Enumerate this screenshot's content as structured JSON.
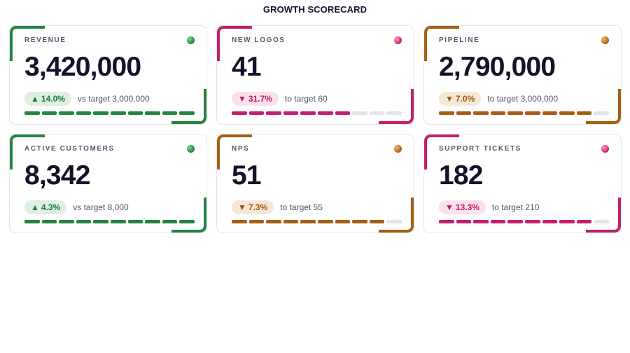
{
  "page": {
    "title": "GROWTH SCORECARD"
  },
  "palette": {
    "green": {
      "accent": "#23843f",
      "badge_bg": "#dff0e3",
      "badge_fg": "#1f7a39",
      "dot": "radial-gradient(circle at 35% 35%, #7fdc98, #1f7a39 70%)"
    },
    "pink": {
      "accent": "#c41f6a",
      "badge_bg": "#fbe0ec",
      "badge_fg": "#b81c62",
      "dot": "radial-gradient(circle at 35% 35%, #ff9ac6, #c41f6a 70%)"
    },
    "amber": {
      "accent": "#a65e12",
      "badge_bg": "#f6e7d5",
      "badge_fg": "#9a5810",
      "dot": "radial-gradient(circle at 35% 35%, #f5b86b, #a65e12 70%)"
    },
    "empty_segment": "#e3e3ee"
  },
  "cards": [
    {
      "label": "REVENUE",
      "value": "3,420,000",
      "direction": "up",
      "arrow": "▲",
      "delta": "14.0%",
      "target_text": "vs target 3,000,000",
      "progress": 1.0,
      "theme": "green",
      "status_icon": "status-dot-icon"
    },
    {
      "label": "NEW LOGOS",
      "value": "41",
      "direction": "down",
      "arrow": "▼",
      "delta": "31.7%",
      "target_text": "to target 60",
      "progress": 0.7,
      "theme": "pink",
      "status_icon": "status-dot-icon"
    },
    {
      "label": "PIPELINE",
      "value": "2,790,000",
      "direction": "down",
      "arrow": "▼",
      "delta": "7.0%",
      "target_text": "to target 3,000,000",
      "progress": 0.9,
      "theme": "amber",
      "status_icon": "status-dot-icon"
    },
    {
      "label": "ACTIVE CUSTOMERS",
      "value": "8,342",
      "direction": "up",
      "arrow": "▲",
      "delta": "4.3%",
      "target_text": "vs target 8,000",
      "progress": 1.0,
      "theme": "green",
      "status_icon": "status-dot-icon"
    },
    {
      "label": "NPS",
      "value": "51",
      "direction": "down",
      "arrow": "▼",
      "delta": "7.3%",
      "target_text": "to target 55",
      "progress": 0.9,
      "theme": "amber",
      "status_icon": "status-dot-icon"
    },
    {
      "label": "SUPPORT TICKETS",
      "value": "182",
      "direction": "down",
      "arrow": "▼",
      "delta": "13.3%",
      "target_text": "to target 210",
      "progress": 0.9,
      "theme": "pink",
      "status_icon": "status-dot-icon"
    }
  ]
}
